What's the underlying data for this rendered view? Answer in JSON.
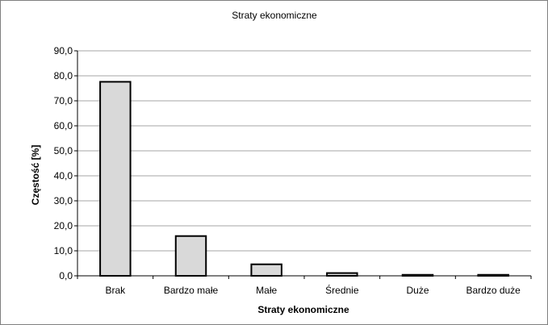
{
  "chart_data": {
    "type": "bar",
    "title": "Straty ekonomiczne",
    "xlabel": "Straty ekonomiczne",
    "ylabel": "Częstość [%]",
    "categories": [
      "Brak",
      "Bardzo małe",
      "Małe",
      "Średnie",
      "Duże",
      "Bardzo duże"
    ],
    "values": [
      77.6,
      15.9,
      4.6,
      1.1,
      0.4,
      0.4
    ],
    "ylim": [
      0,
      90
    ],
    "yticks": [
      "0,0",
      "10,0",
      "20,0",
      "30,0",
      "40,0",
      "50,0",
      "60,0",
      "70,0",
      "80,0",
      "90,0"
    ],
    "grid": true,
    "legend": "none",
    "colors": {
      "bar_fill": "#d9d9d9",
      "bar_stroke": "#000000",
      "grid": "#a6a6a6"
    }
  }
}
